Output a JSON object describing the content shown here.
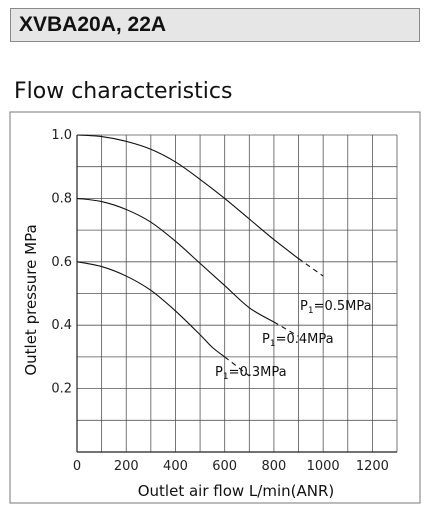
{
  "header": {
    "title": "XVBA20A, 22A"
  },
  "section": {
    "title": "Flow characteristics"
  },
  "chart_data": {
    "type": "line",
    "title": "",
    "xlabel": "Outlet air flow L/min(ANR)",
    "ylabel": "Outlet pressure MPa",
    "xlim": [
      0,
      1300
    ],
    "ylim": [
      0,
      1.0
    ],
    "x_ticks": [
      "0",
      "200",
      "400",
      "600",
      "800",
      "1000",
      "1200"
    ],
    "y_ticks": [
      "0.2",
      "0.4",
      "0.6",
      "0.8",
      "1.0"
    ],
    "grid": true,
    "series": [
      {
        "name": "P1=0.5MPa",
        "label": {
          "prefix": "P",
          "sub": "1",
          "rest": "=0.5MPa"
        },
        "solid": [
          [
            0,
            1.0
          ],
          [
            100,
            0.995
          ],
          [
            200,
            0.98
          ],
          [
            300,
            0.955
          ],
          [
            400,
            0.915
          ],
          [
            500,
            0.86
          ],
          [
            600,
            0.8
          ],
          [
            700,
            0.735
          ],
          [
            800,
            0.67
          ],
          [
            900,
            0.61
          ]
        ],
        "dashed": [
          [
            900,
            0.61
          ],
          [
            1000,
            0.555
          ]
        ]
      },
      {
        "name": "P1=0.4MPa",
        "label": {
          "prefix": "P",
          "sub": "1",
          "rest": "=0.4MPa"
        },
        "solid": [
          [
            0,
            0.8
          ],
          [
            100,
            0.79
          ],
          [
            200,
            0.765
          ],
          [
            300,
            0.725
          ],
          [
            400,
            0.665
          ],
          [
            500,
            0.595
          ],
          [
            600,
            0.525
          ],
          [
            700,
            0.455
          ],
          [
            800,
            0.41
          ]
        ],
        "dashed": [
          [
            800,
            0.41
          ],
          [
            900,
            0.365
          ]
        ]
      },
      {
        "name": "P1=0.3MPa",
        "label": {
          "prefix": "P",
          "sub": "1",
          "rest": "=0.3MPa"
        },
        "solid": [
          [
            0,
            0.6
          ],
          [
            100,
            0.585
          ],
          [
            200,
            0.555
          ],
          [
            300,
            0.51
          ],
          [
            400,
            0.445
          ],
          [
            500,
            0.37
          ],
          [
            550,
            0.33
          ],
          [
            600,
            0.3
          ]
        ],
        "dashed": [
          [
            600,
            0.3
          ],
          [
            700,
            0.24
          ]
        ]
      }
    ]
  }
}
